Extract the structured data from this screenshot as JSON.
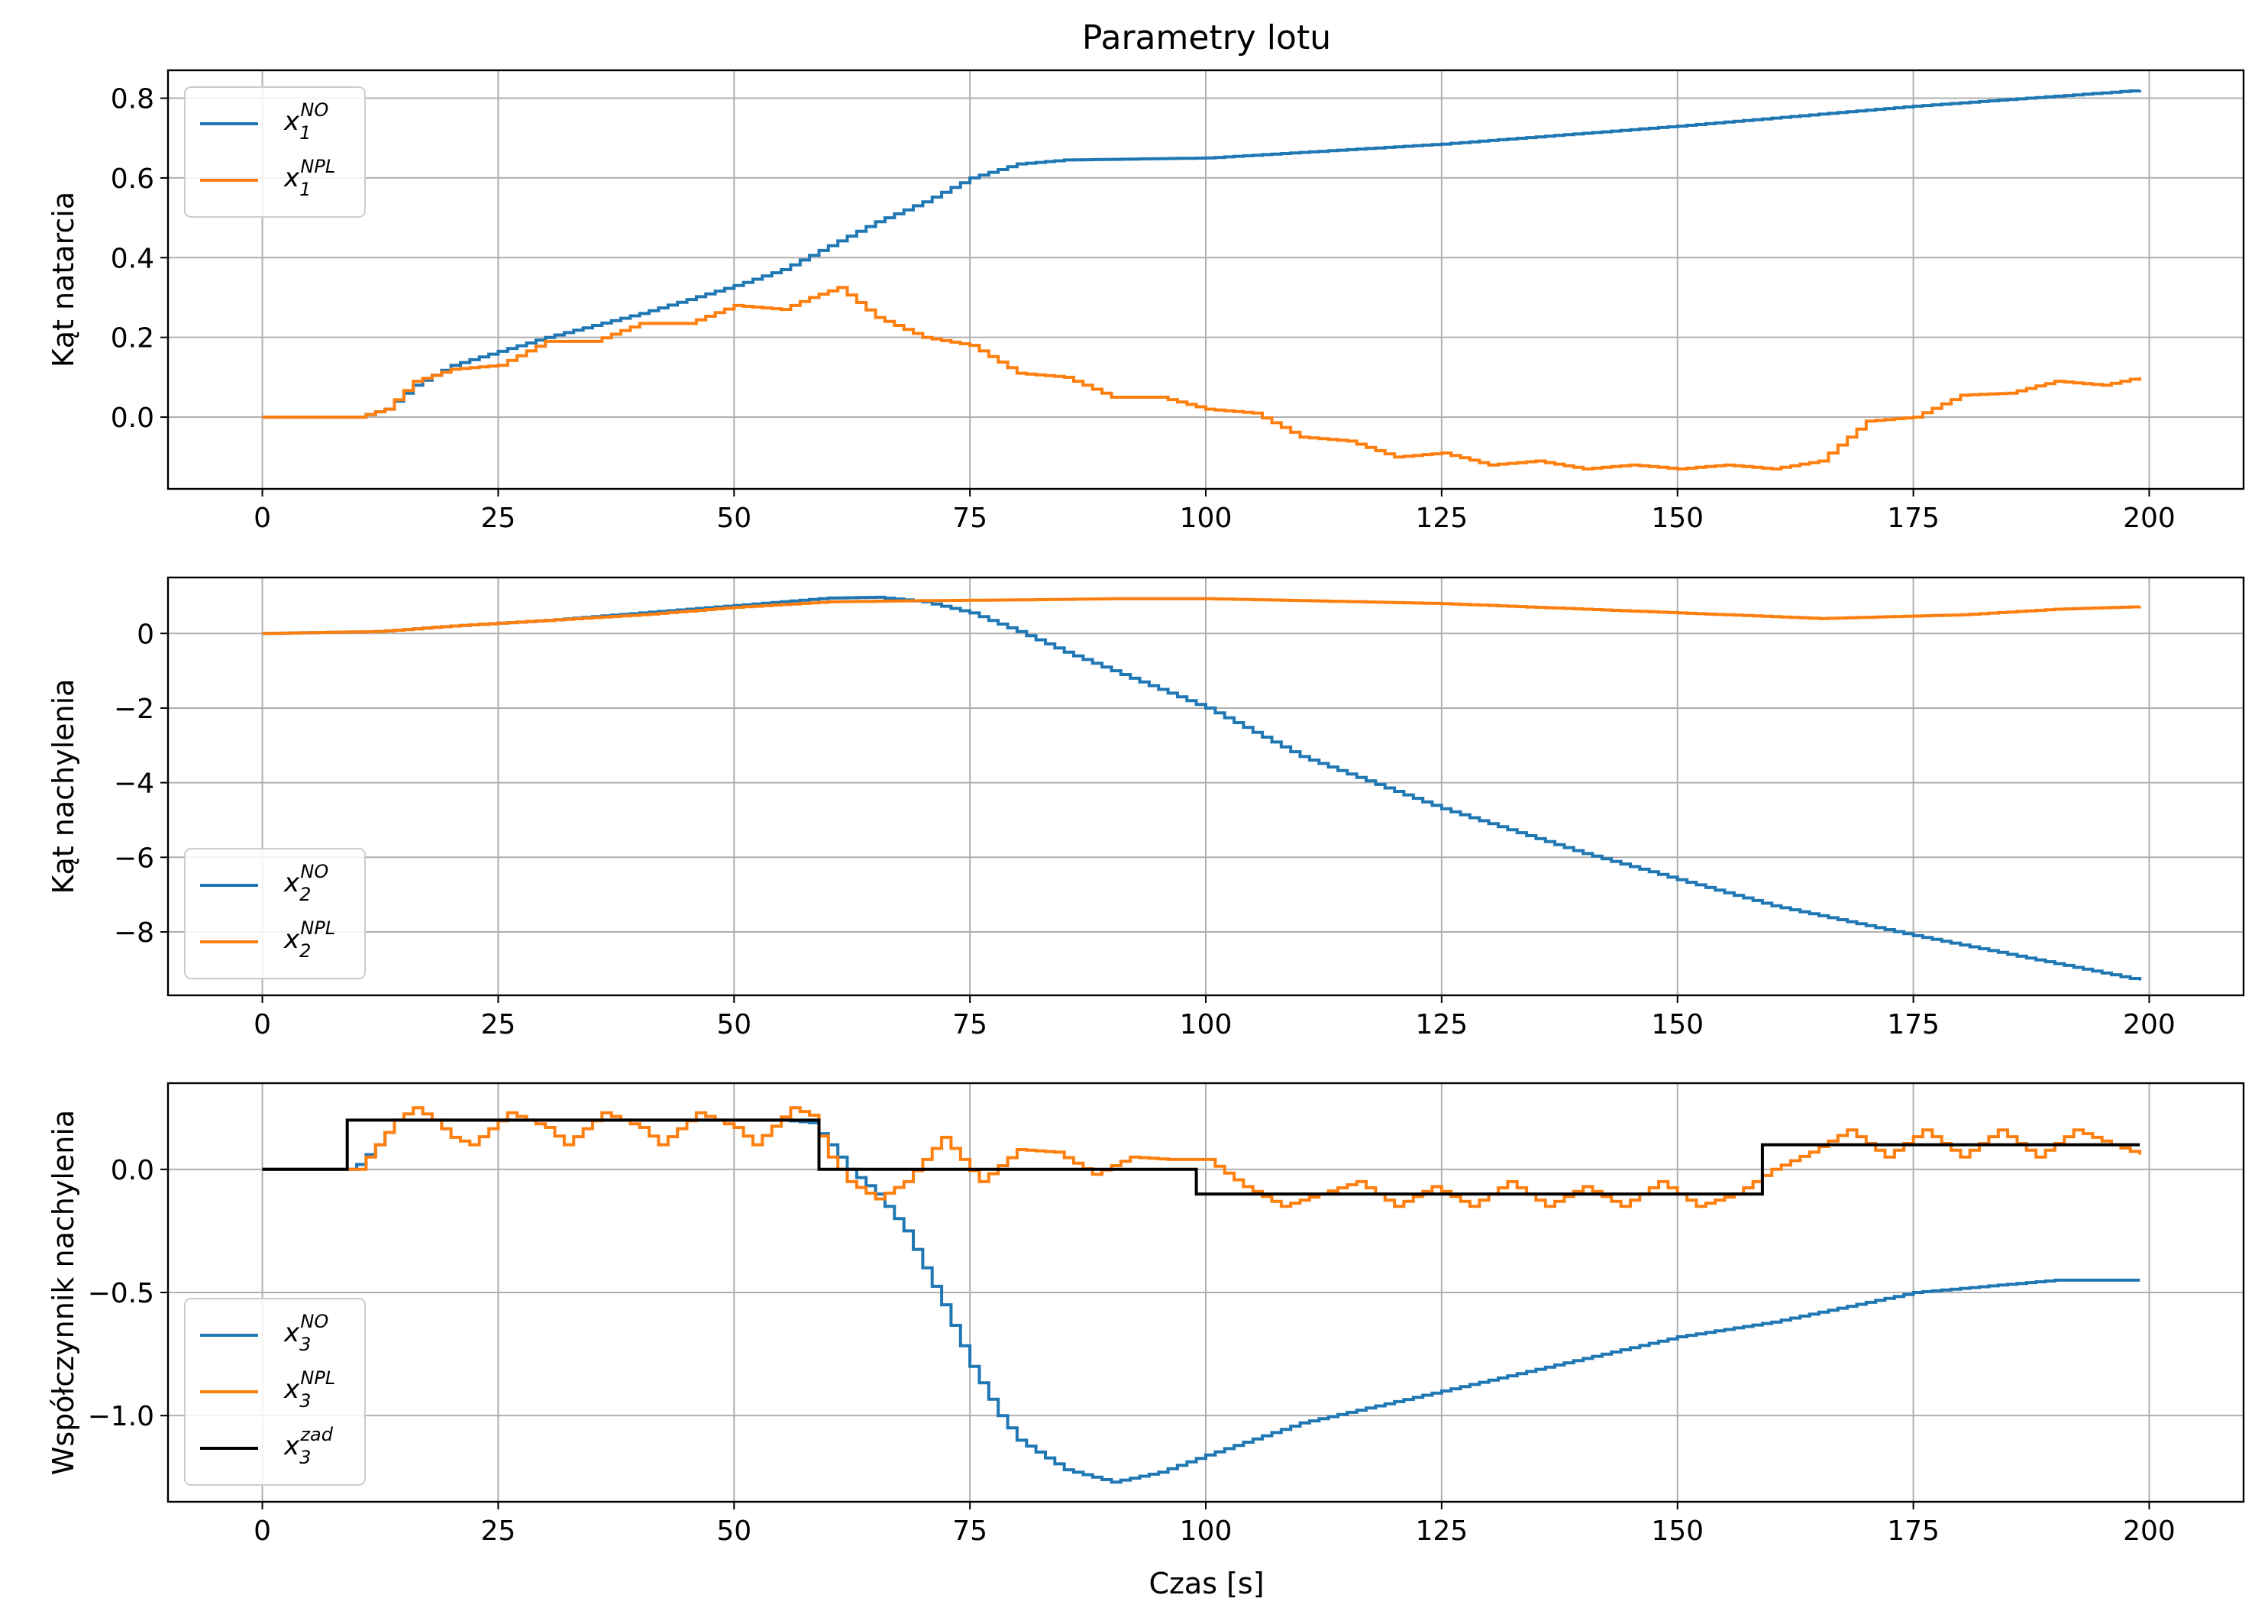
{
  "title": "Parametry lotu",
  "xlabel": "Czas [s]",
  "colors": {
    "no": "#1f77b4",
    "npl": "#ff7f0e",
    "zad": "#000000",
    "grid": "#b0b0b0"
  },
  "chart_data": [
    {
      "type": "line",
      "ylabel": "Kąt natarcia",
      "xlim": [
        -10,
        210
      ],
      "ylim": [
        -0.18,
        0.87
      ],
      "xticks": [
        0,
        25,
        50,
        75,
        100,
        125,
        150,
        175,
        200
      ],
      "xtick_labels": [
        "0",
        "25",
        "50",
        "75",
        "100",
        "125",
        "150",
        "175",
        "200"
      ],
      "yticks": [
        0.0,
        0.2,
        0.4,
        0.6,
        0.8
      ],
      "ytick_labels": [
        "0.0",
        "0.2",
        "0.4",
        "0.6",
        "0.8"
      ],
      "grid": true,
      "legend_position": "upper-left",
      "series": [
        {
          "key": "no",
          "legend": {
            "base": "x",
            "sub": "1",
            "sup": "NO"
          },
          "color": "#1f77b4",
          "step": true,
          "x": [
            0,
            10,
            13,
            16,
            20,
            25,
            30,
            40,
            50,
            55,
            60,
            65,
            70,
            75,
            80,
            85,
            100,
            125,
            150,
            175,
            199
          ],
          "y": [
            0,
            0,
            0.02,
            0.08,
            0.13,
            0.165,
            0.2,
            0.26,
            0.33,
            0.37,
            0.43,
            0.49,
            0.54,
            0.6,
            0.635,
            0.645,
            0.65,
            0.685,
            0.73,
            0.78,
            0.82
          ]
        },
        {
          "key": "npl",
          "legend": {
            "base": "x",
            "sub": "1",
            "sup": "NPL"
          },
          "color": "#ff7f0e",
          "step": true,
          "x": [
            0,
            10,
            13,
            16,
            20,
            25,
            30,
            35,
            40,
            45,
            50,
            55,
            58,
            61,
            65,
            70,
            75,
            80,
            85,
            90,
            95,
            100,
            105,
            110,
            115,
            120,
            125,
            130,
            135,
            140,
            145,
            150,
            155,
            160,
            165,
            170,
            175,
            180,
            185,
            190,
            195,
            199
          ],
          "y": [
            0,
            0,
            0.02,
            0.09,
            0.12,
            0.13,
            0.19,
            0.19,
            0.235,
            0.235,
            0.28,
            0.27,
            0.3,
            0.325,
            0.25,
            0.2,
            0.18,
            0.11,
            0.1,
            0.05,
            0.05,
            0.02,
            0.01,
            -0.05,
            -0.06,
            -0.1,
            -0.09,
            -0.12,
            -0.11,
            -0.13,
            -0.12,
            -0.13,
            -0.12,
            -0.13,
            -0.11,
            -0.01,
            0.0,
            0.055,
            0.06,
            0.09,
            0.08,
            0.1
          ]
        }
      ]
    },
    {
      "type": "line",
      "ylabel": "Kąt nachylenia",
      "xlim": [
        -10,
        210
      ],
      "ylim": [
        -9.7,
        1.5
      ],
      "xticks": [
        0,
        25,
        50,
        75,
        100,
        125,
        150,
        175,
        200
      ],
      "xtick_labels": [
        "0",
        "25",
        "50",
        "75",
        "100",
        "125",
        "150",
        "175",
        "200"
      ],
      "yticks": [
        0,
        -2,
        -4,
        -6,
        -8
      ],
      "ytick_labels": [
        "0",
        "−2",
        "−4",
        "−6",
        "−8"
      ],
      "grid": true,
      "legend_position": "lower-left",
      "series": [
        {
          "key": "no",
          "legend": {
            "base": "x",
            "sub": "2",
            "sup": "NO"
          },
          "color": "#1f77b4",
          "step": true,
          "x": [
            0,
            12,
            20,
            30,
            40,
            50,
            60,
            65,
            70,
            75,
            80,
            85,
            90,
            100,
            110,
            125,
            140,
            150,
            160,
            175,
            199
          ],
          "y": [
            0,
            0.05,
            0.2,
            0.35,
            0.55,
            0.75,
            0.95,
            0.97,
            0.85,
            0.55,
            0.05,
            -0.5,
            -1.0,
            -2.0,
            -3.3,
            -4.7,
            -5.9,
            -6.6,
            -7.3,
            -8.1,
            -9.3
          ]
        },
        {
          "key": "npl",
          "legend": {
            "base": "x",
            "sub": "2",
            "sup": "NPL"
          },
          "color": "#ff7f0e",
          "step": true,
          "x": [
            0,
            12,
            20,
            30,
            40,
            50,
            60,
            70,
            80,
            90,
            100,
            110,
            125,
            140,
            150,
            165,
            180,
            190,
            199
          ],
          "y": [
            0,
            0.05,
            0.2,
            0.35,
            0.5,
            0.7,
            0.85,
            0.88,
            0.9,
            0.93,
            0.93,
            0.88,
            0.8,
            0.65,
            0.55,
            0.4,
            0.5,
            0.65,
            0.72
          ]
        }
      ]
    },
    {
      "type": "line",
      "ylabel": "Współczynnik nachylenia",
      "xlabel": "Czas [s]",
      "xlim": [
        -10,
        210
      ],
      "ylim": [
        -1.35,
        0.35
      ],
      "xticks": [
        0,
        25,
        50,
        75,
        100,
        125,
        150,
        175,
        200
      ],
      "xtick_labels": [
        "0",
        "25",
        "50",
        "75",
        "100",
        "125",
        "150",
        "175",
        "200"
      ],
      "yticks": [
        0.0,
        -0.5,
        -1.0
      ],
      "ytick_labels": [
        "0.0",
        "−0.5",
        "−1.0"
      ],
      "grid": true,
      "legend_position": "lower-left",
      "series": [
        {
          "key": "no",
          "legend": {
            "base": "x",
            "sub": "3",
            "sup": "NO"
          },
          "color": "#1f77b4",
          "step": true,
          "x": [
            0,
            9,
            10,
            12,
            14,
            16,
            20,
            25,
            30,
            35,
            40,
            45,
            50,
            55,
            58,
            60,
            62,
            65,
            68,
            70,
            72,
            75,
            78,
            80,
            85,
            90,
            95,
            100,
            110,
            125,
            150,
            160,
            175,
            190,
            199
          ],
          "y": [
            0,
            0,
            0.02,
            0.1,
            0.2,
            0.2,
            0.2,
            0.2,
            0.2,
            0.2,
            0.2,
            0.2,
            0.2,
            0.2,
            0.19,
            0.1,
            0.0,
            -0.1,
            -0.25,
            -0.4,
            -0.55,
            -0.8,
            -1.0,
            -1.1,
            -1.22,
            -1.27,
            -1.23,
            -1.16,
            -1.03,
            -0.9,
            -0.68,
            -0.62,
            -0.5,
            -0.45,
            -0.45
          ]
        },
        {
          "key": "npl",
          "legend": {
            "base": "x",
            "sub": "3",
            "sup": "NPL"
          },
          "color": "#ff7f0e",
          "step": true,
          "x": [
            0,
            9,
            10,
            12,
            14,
            16,
            18,
            20,
            22,
            26,
            30,
            32,
            36,
            40,
            42,
            46,
            50,
            52,
            56,
            58,
            60,
            62,
            65,
            68,
            72,
            76,
            80,
            84,
            88,
            92,
            96,
            100,
            104,
            108,
            112,
            116,
            120,
            124,
            128,
            132,
            136,
            140,
            144,
            148,
            152,
            156,
            160,
            164,
            168,
            172,
            176,
            180,
            184,
            188,
            192,
            196,
            199
          ],
          "y": [
            0,
            0,
            0.0,
            0.1,
            0.2,
            0.25,
            0.2,
            0.13,
            0.1,
            0.23,
            0.17,
            0.1,
            0.23,
            0.17,
            0.1,
            0.23,
            0.17,
            0.1,
            0.25,
            0.22,
            0.05,
            -0.05,
            -0.12,
            -0.05,
            0.13,
            -0.05,
            0.08,
            0.07,
            -0.02,
            0.05,
            0.04,
            0.04,
            -0.07,
            -0.15,
            -0.1,
            -0.05,
            -0.15,
            -0.07,
            -0.15,
            -0.05,
            -0.15,
            -0.07,
            -0.15,
            -0.05,
            -0.15,
            -0.1,
            0.0,
            0.07,
            0.16,
            0.05,
            0.16,
            0.05,
            0.16,
            0.05,
            0.16,
            0.1,
            0.06
          ]
        },
        {
          "key": "zad",
          "legend": {
            "base": "x",
            "sub": "3",
            "sup": "zad"
          },
          "color": "#000000",
          "step": true,
          "x": [
            0,
            9,
            9,
            59,
            59,
            99,
            99,
            159,
            159,
            199
          ],
          "y": [
            0,
            0,
            0.2,
            0.2,
            0,
            0,
            -0.1,
            -0.1,
            0.1,
            0.1
          ]
        }
      ]
    }
  ]
}
